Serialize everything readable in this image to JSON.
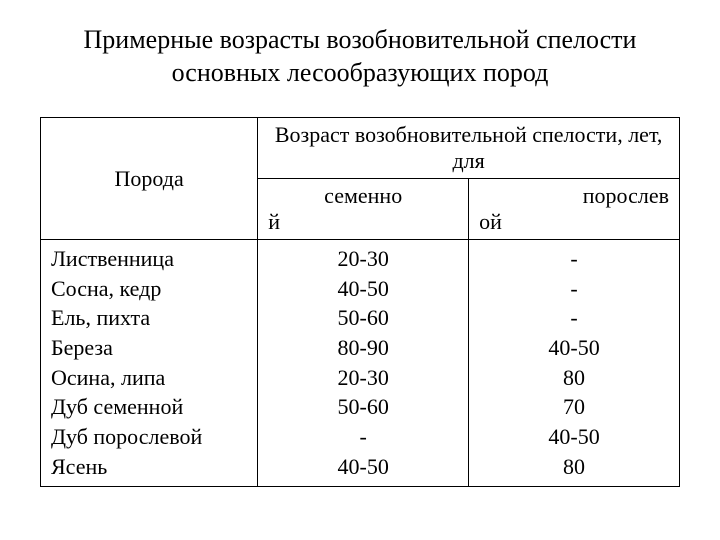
{
  "title": "Примерные возрасты возобновительной спелости основных лесообразующих пород",
  "table": {
    "header_species": "Порода",
    "header_age": "Возраст возобновительной спелости, лет, для",
    "sub_seed_main": "семенно",
    "sub_seed_suffix": "й",
    "sub_sprout_main": "порослев",
    "sub_sprout_suffix": "ой",
    "species": [
      "Лиственница",
      "Сосна, кедр",
      "Ель, пихта",
      "Береза",
      "Осина, липа",
      "Дуб семенной",
      "Дуб порослевой",
      "Ясень"
    ],
    "seed": [
      "20-30",
      "40-50",
      "50-60",
      "80-90",
      "20-30",
      "50-60",
      "-",
      "40-50"
    ],
    "sprout": [
      "-",
      "-",
      "-",
      "40-50",
      "80",
      "70",
      "40-50",
      "80"
    ]
  }
}
